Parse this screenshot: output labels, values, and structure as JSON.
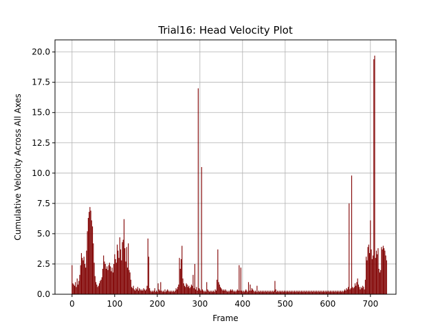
{
  "chart_data": {
    "type": "bar",
    "title": "Trial16: Head Velocity Plot",
    "xlabel": "Frame",
    "ylabel": "Cumulative Velocity Across All Axes",
    "xlim": [
      -40,
      760
    ],
    "ylim": [
      0,
      21
    ],
    "xticks": [
      0,
      100,
      200,
      300,
      400,
      500,
      600,
      700
    ],
    "yticks": [
      0.0,
      2.5,
      5.0,
      7.5,
      10.0,
      12.5,
      15.0,
      17.5,
      20.0
    ],
    "xtick_labels": [
      "0",
      "100",
      "200",
      "300",
      "400",
      "500",
      "600",
      "700"
    ],
    "ytick_labels": [
      "0.0",
      "2.5",
      "5.0",
      "7.5",
      "10.0",
      "12.5",
      "15.0",
      "17.5",
      "20.0"
    ],
    "grid": true,
    "bar_color": "#800000",
    "series": [
      {
        "x_start": 0,
        "x_step": 2,
        "values": [
          2.4,
          0.9,
          0.8,
          0.7,
          1.0,
          0.6,
          1.3,
          0.8,
          1.1,
          1.6,
          2.4,
          3.4,
          3.0,
          2.8,
          3.1,
          2.5,
          2.2,
          3.6,
          5.2,
          6.3,
          6.8,
          7.2,
          6.9,
          6.1,
          5.6,
          4.2,
          2.6,
          1.5,
          1.0,
          0.8,
          0.6,
          0.7,
          0.9,
          1.1,
          1.2,
          1.4,
          2.1,
          3.2,
          2.7,
          2.5,
          2.1,
          2.3,
          2.0,
          2.4,
          2.6,
          2.3,
          1.9,
          2.2,
          1.8,
          2.5,
          3.3,
          2.9,
          2.6,
          4.1,
          3.6,
          3.0,
          4.7,
          3.7,
          2.8,
          4.3,
          4.5,
          6.2,
          3.8,
          2.7,
          3.9,
          2.2,
          4.2,
          2.0,
          1.8,
          1.2,
          0.6,
          0.5,
          0.7,
          0.4,
          0.3,
          0.5,
          0.4,
          0.6,
          0.3,
          0.5,
          0.4,
          0.3,
          0.4,
          0.3,
          0.5,
          0.4,
          0.3,
          0.4,
          0.7,
          4.6,
          3.1,
          0.5,
          0.3,
          0.2,
          0.3,
          0.2,
          0.3,
          0.5,
          0.2,
          0.3,
          0.2,
          0.9,
          0.4,
          0.3,
          1.0,
          0.3,
          0.2,
          0.3,
          0.2,
          0.4,
          0.2,
          0.3,
          0.4,
          0.3,
          0.2,
          0.3,
          0.2,
          0.3,
          0.2,
          0.3,
          0.2,
          0.3,
          0.5,
          0.4,
          0.6,
          0.8,
          3.0,
          2.1,
          2.9,
          4.0,
          1.3,
          0.9,
          0.7,
          0.6,
          0.9,
          0.8,
          0.6,
          0.7,
          0.5,
          0.6,
          0.8,
          0.7,
          1.6,
          0.5,
          2.5,
          0.4,
          0.6,
          0.3,
          17.0,
          0.5,
          0.4,
          0.3,
          10.5,
          0.4,
          0.3,
          0.2,
          0.3,
          0.2,
          1.0,
          0.4,
          0.3,
          0.2,
          0.3,
          0.2,
          0.3,
          0.2,
          0.3,
          0.2,
          0.4,
          0.3,
          1.2,
          3.7,
          1.0,
          0.8,
          0.6,
          0.5,
          0.4,
          0.3,
          0.4,
          0.3,
          0.4,
          0.3,
          0.2,
          0.3,
          0.2,
          0.3,
          0.4,
          0.3,
          0.4,
          0.3,
          0.2,
          0.3,
          0.2,
          0.3,
          0.4,
          0.3,
          2.4,
          0.3,
          2.2,
          0.3,
          0.2,
          0.3,
          0.2,
          0.3,
          0.4,
          0.3,
          0.2,
          1.0,
          0.3,
          0.8,
          0.3,
          0.5,
          0.4,
          0.3,
          0.2,
          0.3,
          0.2,
          0.7,
          0.2,
          0.3,
          0.2,
          0.3,
          0.2,
          0.3,
          0.2,
          0.3,
          0.2,
          0.3,
          0.2,
          0.3,
          0.2,
          0.3,
          0.2,
          0.3,
          0.2,
          0.3,
          0.2,
          0.3,
          1.1,
          0.4,
          0.2,
          0.3,
          0.2,
          0.3,
          0.2,
          0.3,
          0.2,
          0.3,
          0.2,
          0.3,
          0.2,
          0.3,
          0.2,
          0.3,
          0.2,
          0.3,
          0.2,
          0.3,
          0.2,
          0.3,
          0.2,
          0.3,
          0.2,
          0.3,
          0.2,
          0.3,
          0.2,
          0.3,
          0.2,
          0.3,
          0.2,
          0.3,
          0.2,
          0.3,
          0.2,
          0.3,
          0.2,
          0.3,
          0.2,
          0.3,
          0.2,
          0.3,
          0.2,
          0.3,
          0.2,
          0.3,
          0.2,
          0.3,
          0.2,
          0.3,
          0.2,
          0.3,
          0.2,
          0.3,
          0.2,
          0.3,
          0.2,
          0.3,
          0.2,
          0.3,
          0.2,
          0.3,
          0.2,
          0.3,
          0.2,
          0.3,
          0.2,
          0.3,
          0.2,
          0.3,
          0.2,
          0.3,
          0.2,
          0.3,
          0.2,
          0.3,
          0.2,
          0.3,
          0.2,
          0.3,
          0.4,
          0.3,
          0.5,
          0.4,
          0.6,
          7.5,
          0.4,
          0.5,
          9.8,
          0.6,
          0.5,
          0.6,
          0.9,
          0.7,
          1.0,
          1.3,
          0.8,
          0.6,
          0.4,
          0.6,
          0.5,
          0.7,
          0.6,
          0.4,
          1.2,
          3.1,
          2.8,
          3.9,
          4.1,
          3.4,
          6.1,
          3.7,
          2.9,
          3.2,
          19.4,
          19.7,
          3.0,
          3.6,
          3.3,
          3.8,
          2.1,
          1.8,
          2.0,
          3.9,
          3.7,
          4.0,
          3.8,
          3.6,
          3.2,
          2.8
        ]
      }
    ]
  }
}
